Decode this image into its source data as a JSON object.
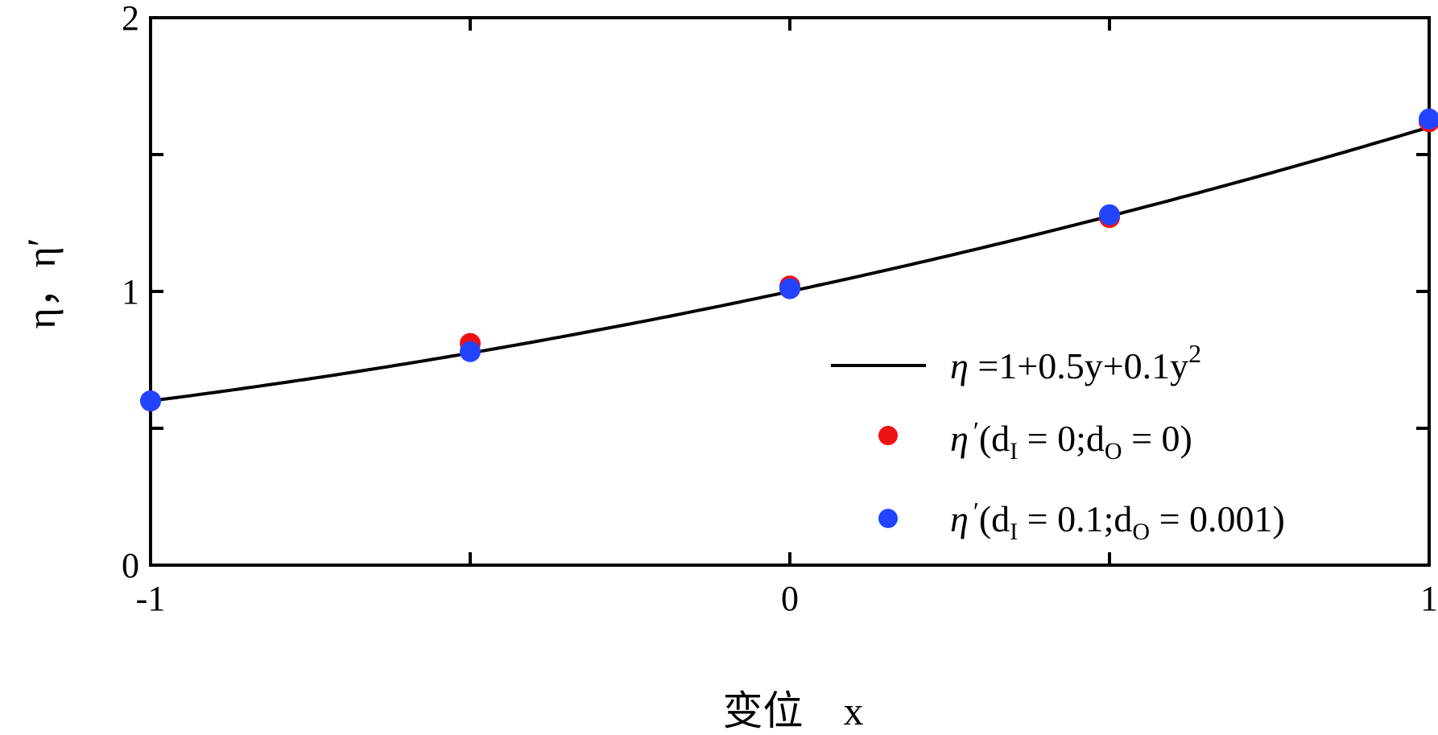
{
  "chart_data": {
    "type": "scatter",
    "xlabel": "变位　x",
    "ylabel": "η，η′",
    "xlim": [
      -1,
      1
    ],
    "ylim": [
      0,
      2
    ],
    "x_ticks_major": [
      -1,
      0,
      1
    ],
    "x_ticks_minor": [
      -0.5,
      0.5
    ],
    "y_ticks_major": [
      0,
      1,
      2
    ],
    "y_ticks_minor": [
      0.5,
      1.5
    ],
    "grid": false,
    "legend_position": "bottom-right",
    "series": [
      {
        "kind": "line",
        "color": "#000000",
        "formula": {
          "c0": 1,
          "c1": 0.5,
          "c2": 0.1
        },
        "legend": {
          "eta": "η",
          "text": " =1+0.5y+0.1y",
          "sup": "2"
        }
      },
      {
        "kind": "points",
        "color": "#ee1111",
        "x": [
          -1,
          -0.5,
          0,
          0.5,
          1
        ],
        "y": [
          0.6,
          0.81,
          1.02,
          1.27,
          1.62
        ],
        "legend": {
          "eta": "η",
          "prime": "′",
          "p1": "(d",
          "s1": "I",
          "p2": " = 0;d",
          "s2": "O",
          "p3": " = 0)"
        }
      },
      {
        "kind": "points",
        "color": "#2244ff",
        "x": [
          -1,
          -0.5,
          0,
          0.5,
          1
        ],
        "y": [
          0.6,
          0.78,
          1.01,
          1.28,
          1.63
        ],
        "legend": {
          "eta": "η",
          "prime": "′",
          "p1": "(d",
          "s1": "I",
          "p2": " = 0.1;d",
          "s2": "O",
          "p3": " = 0.001)"
        }
      }
    ]
  }
}
